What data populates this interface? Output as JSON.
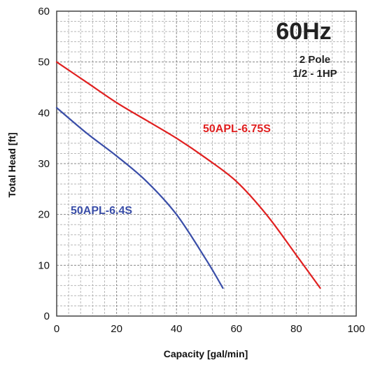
{
  "chart_data": {
    "type": "line",
    "xlabel": "Capacity [gal/min]",
    "ylabel": "Total Head [ft]",
    "xlim": [
      0,
      100
    ],
    "ylim": [
      0,
      60
    ],
    "x_ticks": [
      "0",
      "20",
      "40",
      "60",
      "80",
      "100"
    ],
    "y_ticks": [
      "0",
      "10",
      "20",
      "30",
      "40",
      "50",
      "60"
    ],
    "grid": true,
    "grid_style": "dashed",
    "annotations": [
      "60Hz",
      "2 Pole",
      "1/2 - 1HP"
    ],
    "series": [
      {
        "name": "50APL-6.75S",
        "color": "#e02020",
        "x": [
          0,
          10,
          20,
          30,
          40,
          50,
          60,
          70,
          80,
          88
        ],
        "y": [
          50,
          46,
          42,
          38.5,
          35,
          31,
          26.5,
          20,
          12,
          5.5
        ]
      },
      {
        "name": "50APL-6.4S",
        "color": "#3a4ea8",
        "x": [
          0,
          10,
          20,
          30,
          40,
          50,
          55.5
        ],
        "y": [
          41,
          36,
          31.5,
          26.5,
          20,
          11,
          5.5
        ]
      }
    ]
  }
}
